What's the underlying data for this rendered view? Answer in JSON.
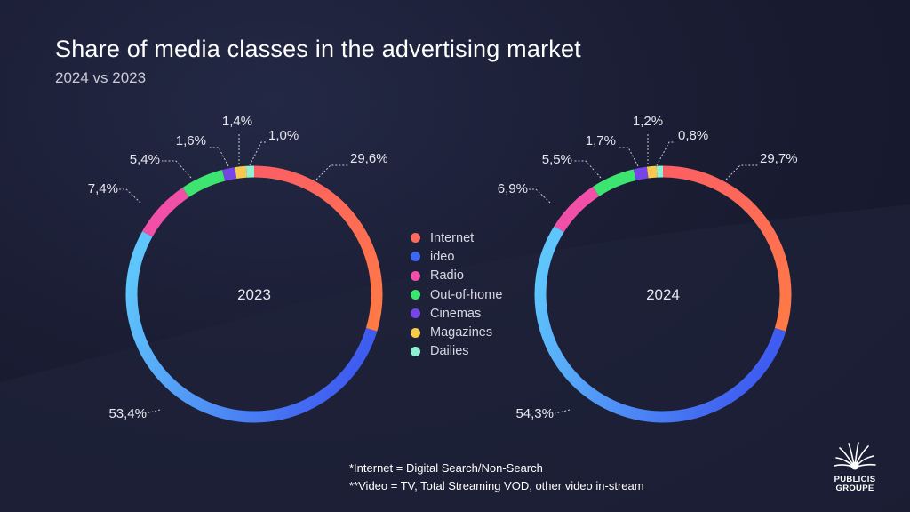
{
  "title": "Share of media classes in the advertising market",
  "subtitle": "2024 vs 2023",
  "legend": [
    {
      "label": "Internet",
      "color": "#fb6a5e"
    },
    {
      "label": "ideo",
      "color": "#3f68f0"
    },
    {
      "label": "Radio",
      "color": "#f24fa9"
    },
    {
      "label": "Out-of-home",
      "color": "#3ee470"
    },
    {
      "label": "Cinemas",
      "color": "#7645e6"
    },
    {
      "label": "Magazines",
      "color": "#f7c94c"
    },
    {
      "label": "Dailies",
      "color": "#8ff0d2"
    }
  ],
  "chart_data": [
    {
      "type": "pie",
      "center_label": "2023",
      "series": [
        {
          "name": "Internet",
          "value": 29.6,
          "label": "29,6%"
        },
        {
          "name": "ideo",
          "value": 53.4,
          "label": "53,4%"
        },
        {
          "name": "Radio",
          "value": 7.4,
          "label": "7,4%"
        },
        {
          "name": "Out-of-home",
          "value": 5.4,
          "label": "5,4%"
        },
        {
          "name": "Cinemas",
          "value": 1.6,
          "label": "1,6%"
        },
        {
          "name": "Magazines",
          "value": 1.4,
          "label": "1,4%"
        },
        {
          "name": "Dailies",
          "value": 1.0,
          "label": "1,0%"
        }
      ]
    },
    {
      "type": "pie",
      "center_label": "2024",
      "series": [
        {
          "name": "Internet",
          "value": 29.7,
          "label": "29,7%"
        },
        {
          "name": "ideo",
          "value": 54.3,
          "label": "54,3%"
        },
        {
          "name": "Radio",
          "value": 6.9,
          "label": "6,9%"
        },
        {
          "name": "Out-of-home",
          "value": 5.5,
          "label": "5,5%"
        },
        {
          "name": "Cinemas",
          "value": 1.7,
          "label": "1,7%"
        },
        {
          "name": "Magazines",
          "value": 1.2,
          "label": "1,2%"
        },
        {
          "name": "Dailies",
          "value": 0.8,
          "label": "0,8%"
        }
      ]
    }
  ],
  "footnotes": [
    "*Internet = Digital Search/Non-Search",
    "**Video = TV, Total Streaming VOD, other video in-stream"
  ],
  "logo": {
    "line1": "PUBLICIS",
    "line2": "GROUPE"
  }
}
